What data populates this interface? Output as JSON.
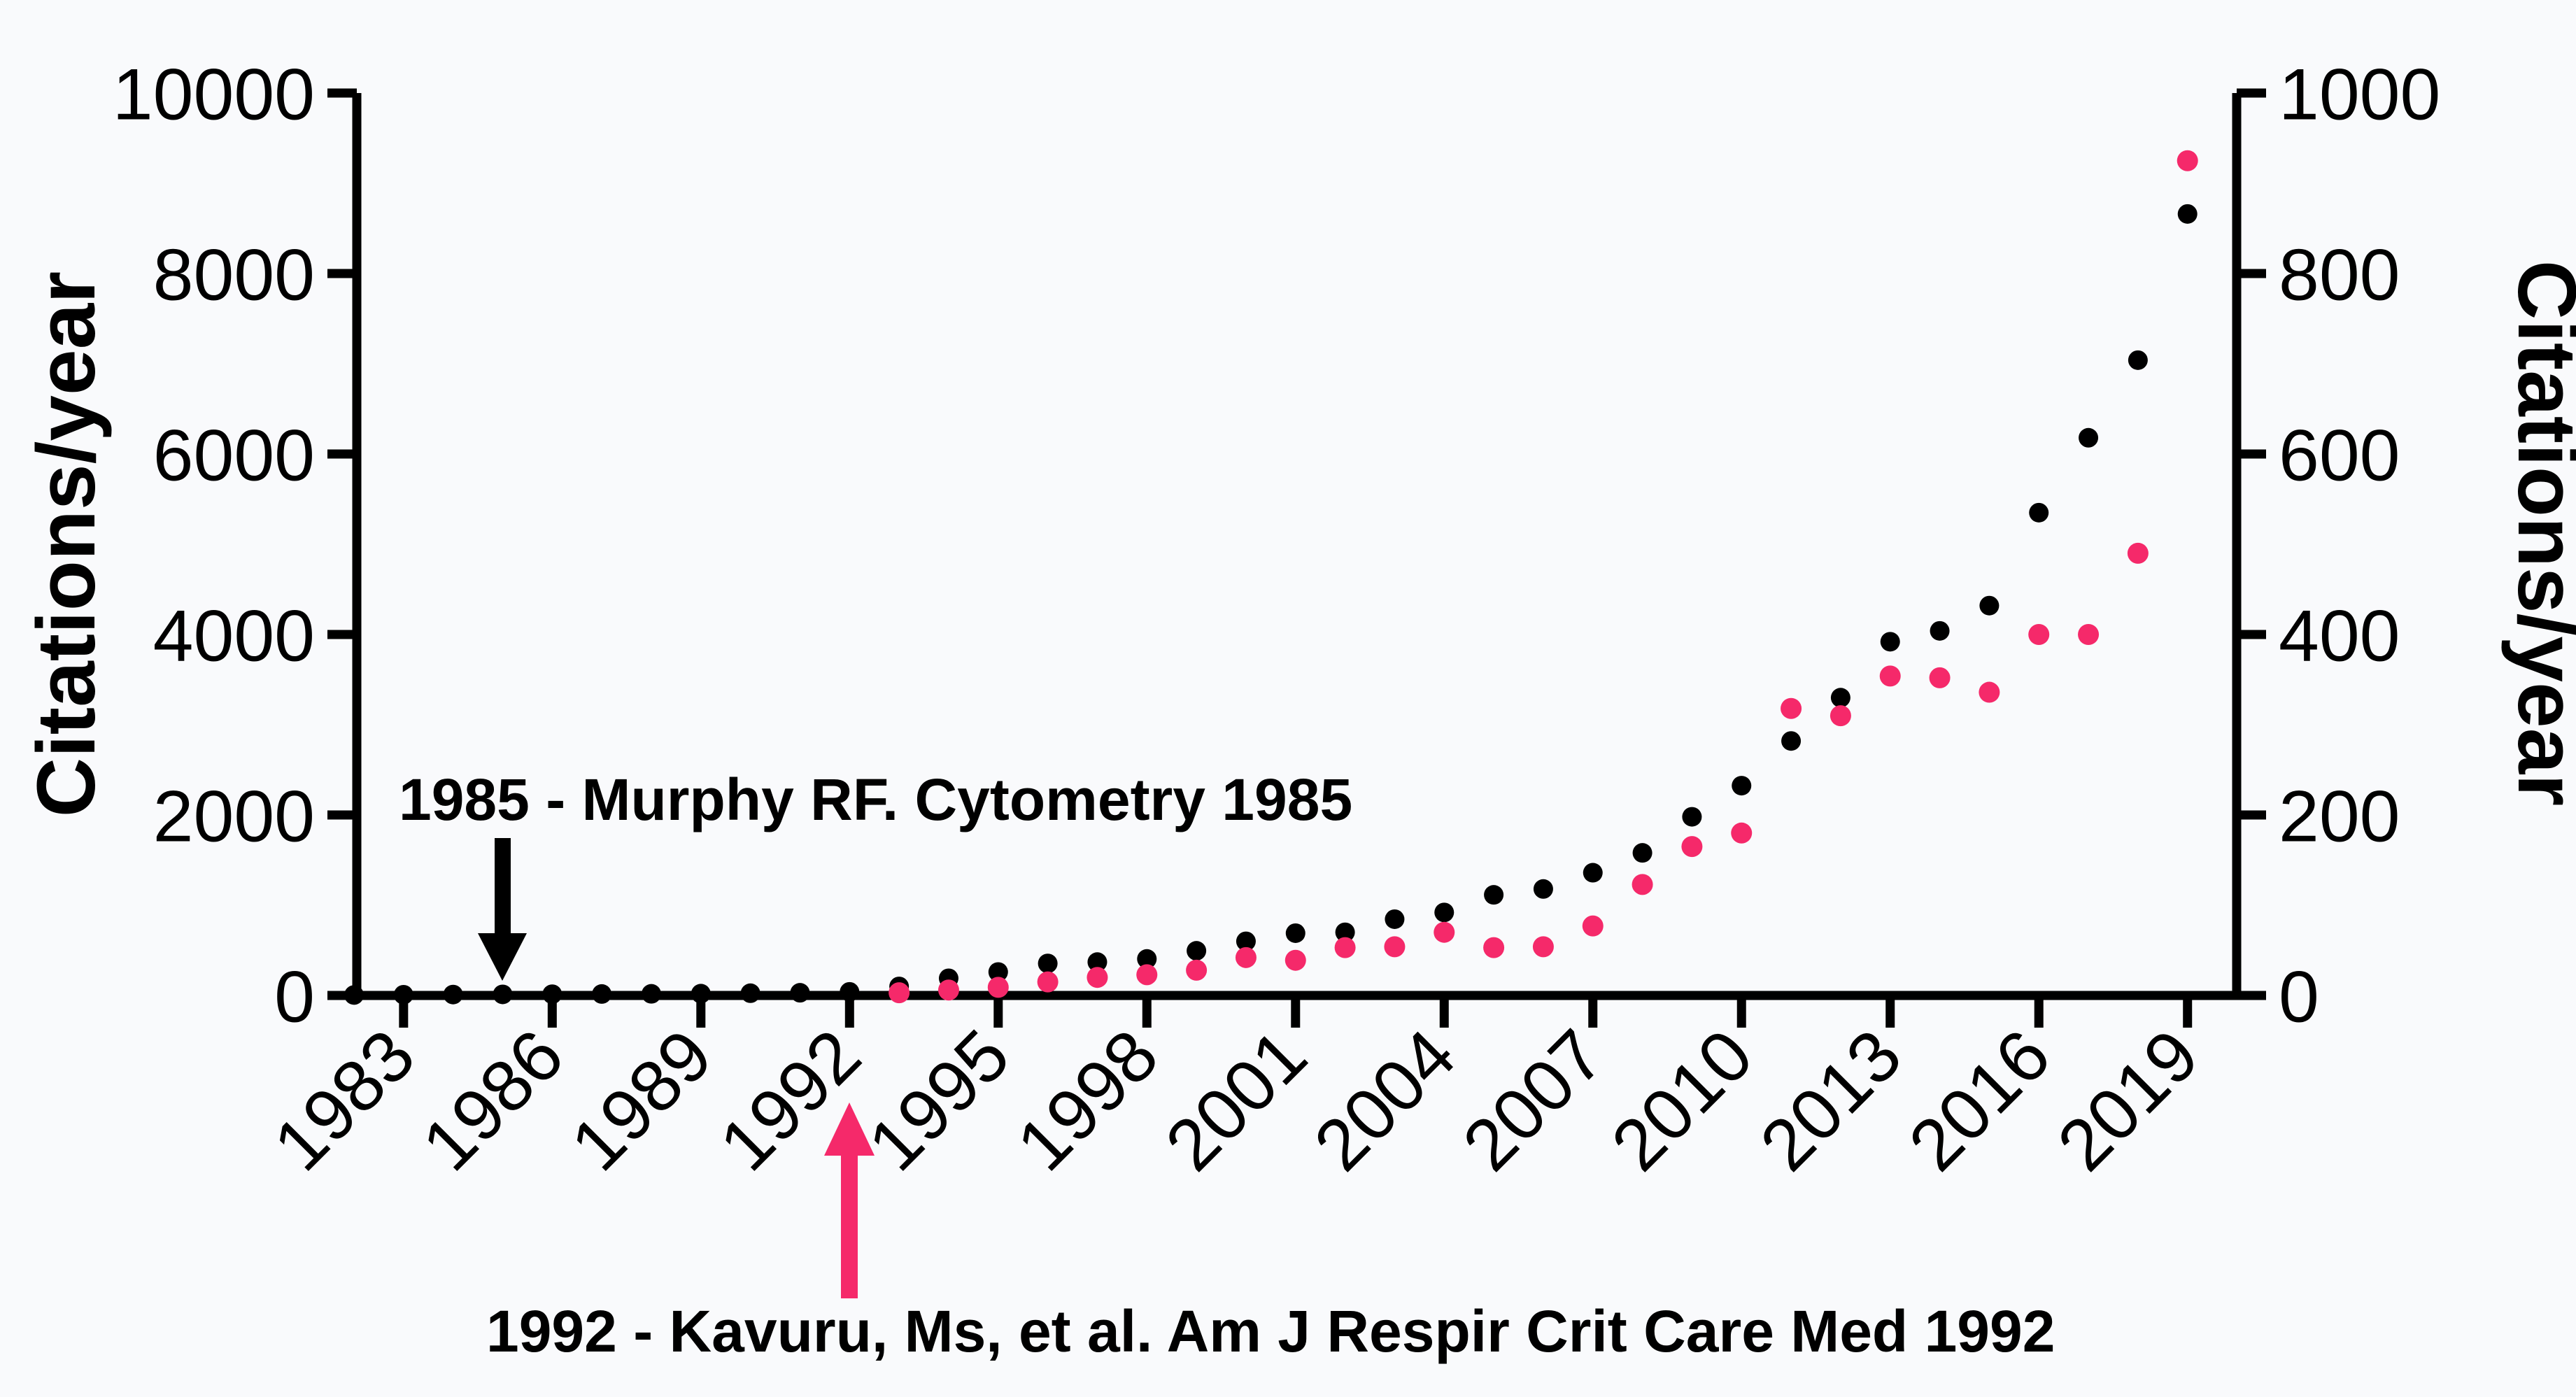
{
  "chart_data": {
    "type": "scatter",
    "title": "",
    "background_color": "#F9FAFC",
    "black_color": "#000000",
    "pink_color": "#F5296A",
    "x_axis": {
      "labeled_years": [
        1983,
        1986,
        1989,
        1992,
        1995,
        1998,
        2001,
        2004,
        2007,
        2010,
        2013,
        2016,
        2019
      ],
      "range": [
        1982,
        2020
      ],
      "tick_label_rotation_deg": -45
    },
    "left_axis": {
      "label": "Citations/year",
      "ticks": [
        0,
        2000,
        4000,
        6000,
        8000,
        10000
      ],
      "range": [
        0,
        10000
      ],
      "color": "#000000"
    },
    "right_axis": {
      "label": "Citations/year",
      "ticks": [
        0,
        200,
        400,
        600,
        800,
        1000
      ],
      "range": [
        0,
        1000
      ],
      "color": "#F5296A"
    },
    "series": [
      {
        "name": "Murphy RF. Cytometry 1985 citations (left axis)",
        "axis": "left",
        "color": "#000000",
        "years": [
          1982,
          1983,
          1984,
          1985,
          1986,
          1987,
          1988,
          1989,
          1990,
          1991,
          1992,
          1993,
          1994,
          1995,
          1996,
          1997,
          1998,
          1999,
          2000,
          2001,
          2002,
          2003,
          2004,
          2005,
          2006,
          2007,
          2008,
          2009,
          2010,
          2011,
          2012,
          2013,
          2014,
          2015,
          2016,
          2017,
          2018,
          2019
        ],
        "values": [
          5,
          8,
          10,
          12,
          14,
          16,
          18,
          20,
          25,
          30,
          40,
          100,
          190,
          260,
          355,
          370,
          405,
          495,
          600,
          690,
          700,
          845,
          920,
          1115,
          1180,
          1360,
          1580,
          1980,
          2325,
          2820,
          3300,
          3920,
          4040,
          4320,
          5350,
          6180,
          7040,
          8660
        ]
      },
      {
        "name": "Kavuru Ms et al. Am J Respir Crit Care Med 1992 citations (right axis)",
        "axis": "right",
        "color": "#F5296A",
        "years": [
          1993,
          1994,
          1995,
          1996,
          1997,
          1998,
          1999,
          2000,
          2001,
          2002,
          2003,
          2004,
          2005,
          2006,
          2007,
          2008,
          2009,
          2010,
          2011,
          2012,
          2013,
          2014,
          2015,
          2016,
          2017,
          2018,
          2019
        ],
        "values": [
          3,
          6,
          9,
          15,
          20,
          23,
          28,
          42,
          39,
          53,
          54,
          70,
          53,
          54,
          77,
          123,
          165,
          180,
          318,
          310,
          354,
          352,
          336,
          400,
          400,
          490,
          925
        ]
      }
    ],
    "annotations": [
      {
        "id": "murphy",
        "text": "1985 - Murphy RF. Cytometry 1985",
        "color": "#000000",
        "arrow_year": 1985,
        "arrow_direction": "down"
      },
      {
        "id": "kavuru",
        "text": "1992 - Kavuru, Ms, et al. Am J Respir Crit Care Med 1992",
        "color": "#F5296A",
        "arrow_year": 1992,
        "arrow_direction": "up"
      }
    ]
  }
}
